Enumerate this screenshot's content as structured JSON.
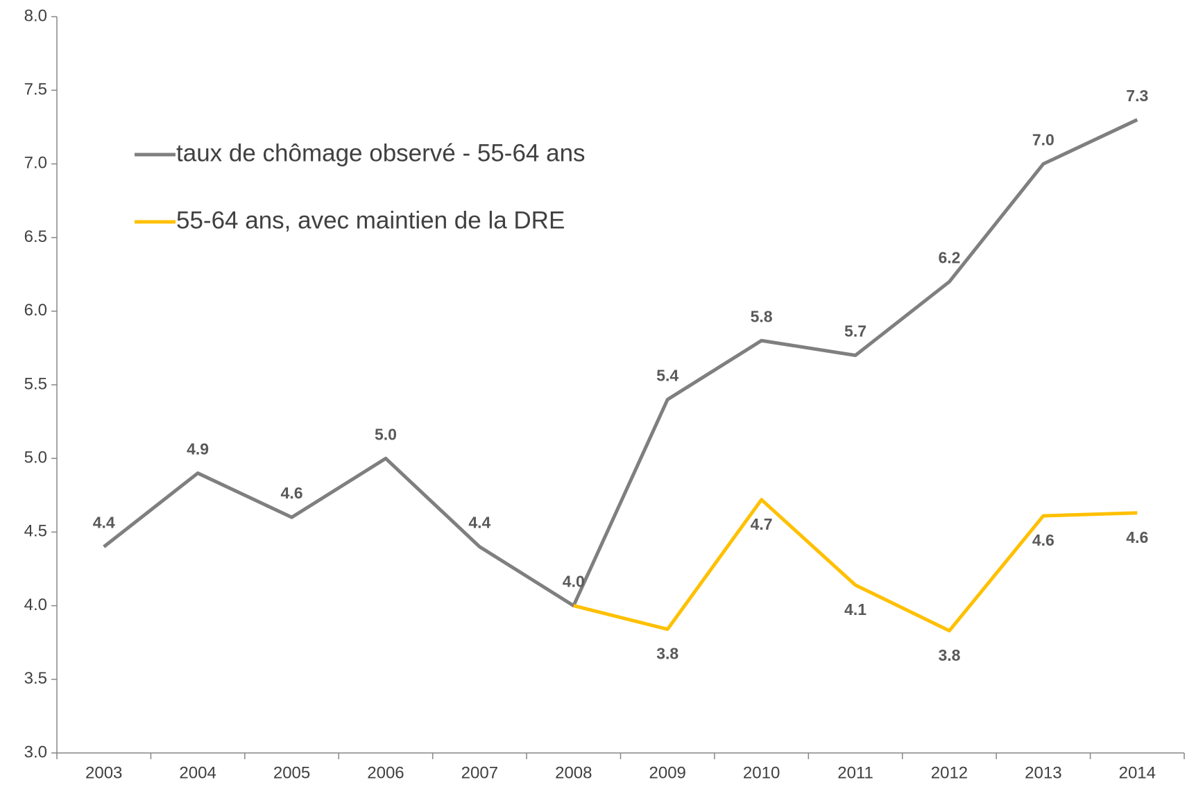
{
  "chart_data": {
    "type": "line",
    "categories": [
      "2003",
      "2004",
      "2005",
      "2006",
      "2007",
      "2008",
      "2009",
      "2010",
      "2011",
      "2012",
      "2013",
      "2014"
    ],
    "series": [
      {
        "name": "taux de chômage observé - 55-64 ans",
        "color": "#7f7f7f",
        "values": [
          4.4,
          4.9,
          4.6,
          5.0,
          4.4,
          4.0,
          5.4,
          5.8,
          5.7,
          6.2,
          7.0,
          7.3
        ],
        "value_labels": [
          "4.4",
          "4.9",
          "4.6",
          "5.0",
          "4.4",
          "4.0",
          "5.4",
          "5.8",
          "5.7",
          "6.2",
          "7.0",
          "7.3"
        ]
      },
      {
        "name": "55-64 ans, avec maintien de la DRE",
        "color": "#ffc000",
        "values": [
          null,
          null,
          null,
          null,
          null,
          4.0,
          3.84,
          4.72,
          4.14,
          3.83,
          4.61,
          4.63
        ],
        "value_labels": [
          null,
          null,
          null,
          null,
          null,
          null,
          "3.8",
          "4.7",
          "4.1",
          "3.8",
          "4.6",
          "4.6"
        ]
      }
    ],
    "ylim": [
      3.0,
      8.0
    ],
    "yticks": [
      {
        "value": 3,
        "label": "3.0"
      },
      3.5,
      {
        "value": 4,
        "label": "4.0"
      },
      4.5,
      {
        "value": 5,
        "label": "5.0"
      },
      5.5,
      {
        "value": 6,
        "label": "6.0"
      },
      6.5,
      {
        "value": 7,
        "label": "7.0"
      },
      7.5,
      {
        "value": 8,
        "label": "8.0"
      }
    ],
    "legend": "upper left",
    "grid": false
  }
}
